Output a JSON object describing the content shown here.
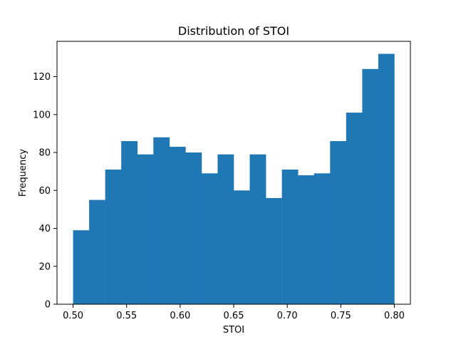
{
  "chart_data": {
    "type": "bar",
    "title": "Distribution of STOI",
    "xlabel": "STOI",
    "ylabel": "Frequency",
    "bin_edges": [
      0.5,
      0.515,
      0.53,
      0.545,
      0.56,
      0.575,
      0.59,
      0.605,
      0.62,
      0.635,
      0.65,
      0.665,
      0.68,
      0.695,
      0.71,
      0.725,
      0.74,
      0.755,
      0.77,
      0.785,
      0.8
    ],
    "values": [
      39,
      55,
      71,
      86,
      79,
      88,
      83,
      80,
      69,
      79,
      60,
      79,
      56,
      71,
      68,
      69,
      86,
      101,
      124,
      132
    ],
    "xlim": [
      0.485,
      0.815
    ],
    "ylim": [
      0,
      138.6
    ],
    "xticks": [
      0.5,
      0.55,
      0.6,
      0.65,
      0.7,
      0.75,
      0.8
    ],
    "xtick_labels": [
      "0.50",
      "0.55",
      "0.60",
      "0.65",
      "0.70",
      "0.75",
      "0.80"
    ],
    "yticks": [
      0,
      20,
      40,
      60,
      80,
      100,
      120
    ],
    "ytick_labels": [
      "0",
      "20",
      "40",
      "60",
      "80",
      "100",
      "120"
    ],
    "grid": false,
    "bar_color": "#1f77b4"
  }
}
